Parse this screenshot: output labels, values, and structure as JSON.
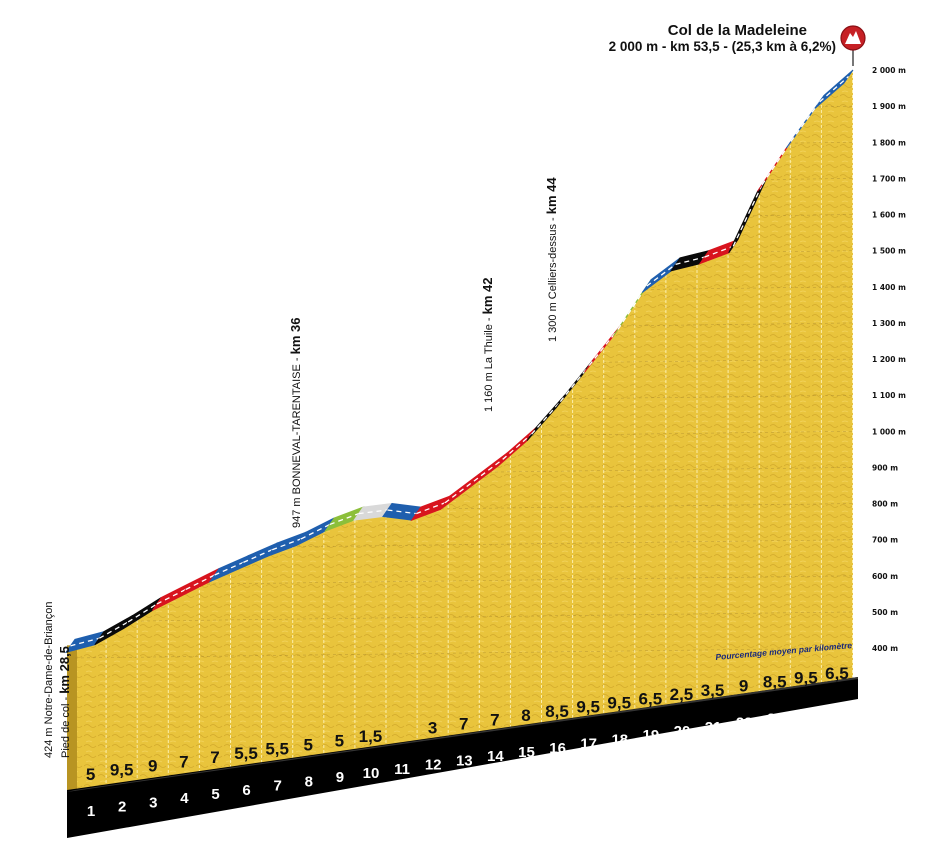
{
  "chart_data": {
    "type": "area",
    "title": "Col de la Madeleine",
    "subtitle": "2 000 m - km 53,5 - (25,3 km à 6,2%)",
    "summit_icon": "mountain-summit-icon",
    "ylabel": "altitude (m)",
    "xlabel": "km",
    "ylim": [
      400,
      2000
    ],
    "y_ticks": [
      "2 000 m",
      "1 900 m",
      "1 800 m",
      "1 700 m",
      "1 600 m",
      "1 500 m",
      "1 400 m",
      "1 300 m",
      "1 200 m",
      "1 100 m",
      "1 000 m",
      "900 m",
      "800 m",
      "700 m",
      "600 m",
      "500 m",
      "400 m"
    ],
    "y_tick_values": [
      2000,
      1900,
      1800,
      1700,
      1600,
      1500,
      1400,
      1300,
      1200,
      1100,
      1000,
      900,
      800,
      700,
      600,
      500,
      400
    ],
    "categories": [
      "1",
      "2",
      "3",
      "4",
      "5",
      "6",
      "7",
      "8",
      "9",
      "10",
      "11",
      "12",
      "13",
      "14",
      "15",
      "16",
      "17",
      "18",
      "19",
      "20",
      "21",
      "22",
      "23",
      "24",
      "25"
    ],
    "gradient_label": "Pourcentage moyen par kilomètre",
    "gradients": [
      "5",
      "9,5",
      "9",
      "7",
      "7",
      "5,5",
      "5,5",
      "5",
      "5",
      "1,5",
      "",
      "3",
      "7",
      "7",
      "8",
      "8,5",
      "9,5",
      "9,5",
      "6,5",
      "2,5",
      "3,5",
      "9",
      "8,5",
      "9,5",
      "6,5"
    ],
    "profile_altitudes": [
      424,
      445,
      490,
      540,
      580,
      620,
      655,
      690,
      720,
      760,
      790,
      800,
      790,
      820,
      880,
      940,
      1010,
      1100,
      1200,
      1300,
      1420,
      1480,
      1500,
      1530,
      1700,
      1820,
      1930,
      2000
    ],
    "segment_colors": [
      "blue",
      "black",
      "black",
      "red",
      "red",
      "blue",
      "blue",
      "blue",
      "blue",
      "green",
      "grey",
      "blue",
      "red",
      "red",
      "red",
      "red",
      "black",
      "black",
      "red",
      "green",
      "blue",
      "black",
      "red",
      "black",
      "red",
      "blue"
    ],
    "colors": {
      "blue": "#1f5fae",
      "black": "#0a0a0a",
      "red": "#d8141e",
      "green": "#8cbf3a",
      "grey": "#d9d9d9",
      "fill": "#e8c23a",
      "fill_dark": "#b89422",
      "base": "#000000",
      "summit": "#c62025"
    },
    "annotations": [
      {
        "name": "start",
        "line1": "424 m Notre-Dame-de-Briançon",
        "line2_prefix": "Pied de col - ",
        "line2_bold": "km 28,5"
      },
      {
        "name": "bonneval",
        "text": "947 m BONNEVAL-TARENTAISE - ",
        "bold": "km 36"
      },
      {
        "name": "la-thuile",
        "text": "1 160 m La Thuile - ",
        "bold": "km 42"
      },
      {
        "name": "celliers",
        "text": "1 300 m Celliers-dessus - ",
        "bold": "km 44"
      }
    ],
    "grid": true,
    "legend_position": "none"
  }
}
